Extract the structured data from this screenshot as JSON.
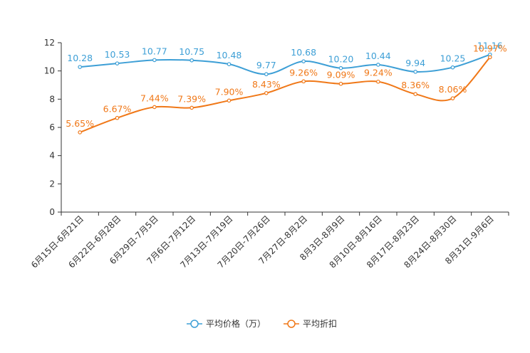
{
  "chart_data": {
    "type": "line",
    "categories": [
      "6月15日-6月21日",
      "6月22日-6月28日",
      "6月29日-7月5日",
      "7月6日-7月12日",
      "7月13日-7月19日",
      "7月20日-7月26日",
      "7月27日-8月2日",
      "8月3日-8月9日",
      "8月10日-8月16日",
      "8月17日-8月23日",
      "8月24日-8月30日",
      "8月31日-9月6日"
    ],
    "series": [
      {
        "name": "平均价格（万）",
        "color": "#3d9fd6",
        "values": [
          10.28,
          10.53,
          10.77,
          10.75,
          10.48,
          9.77,
          10.68,
          10.2,
          10.44,
          9.94,
          10.25,
          11.16
        ],
        "labels": [
          "10.28",
          "10.53",
          "10.77",
          "10.75",
          "10.48",
          "9.77",
          "10.68",
          "10.20",
          "10.44",
          "9.94",
          "10.25",
          "11.16"
        ]
      },
      {
        "name": "平均折扣",
        "color": "#f07818",
        "values": [
          5.65,
          6.67,
          7.44,
          7.39,
          7.9,
          8.43,
          9.26,
          9.09,
          9.24,
          8.36,
          8.06,
          10.97
        ],
        "labels": [
          "5.65%",
          "6.67%",
          "7.44%",
          "7.39%",
          "7.90%",
          "8.43%",
          "9.26%",
          "9.09%",
          "9.24%",
          "8.36%",
          "8.06%",
          "10.97%"
        ]
      }
    ],
    "y_ticks": [
      "0",
      "2",
      "4",
      "6",
      "8",
      "10",
      "12"
    ],
    "ylim": [
      0,
      12
    ],
    "legend": "bottom-center",
    "grid": false
  }
}
